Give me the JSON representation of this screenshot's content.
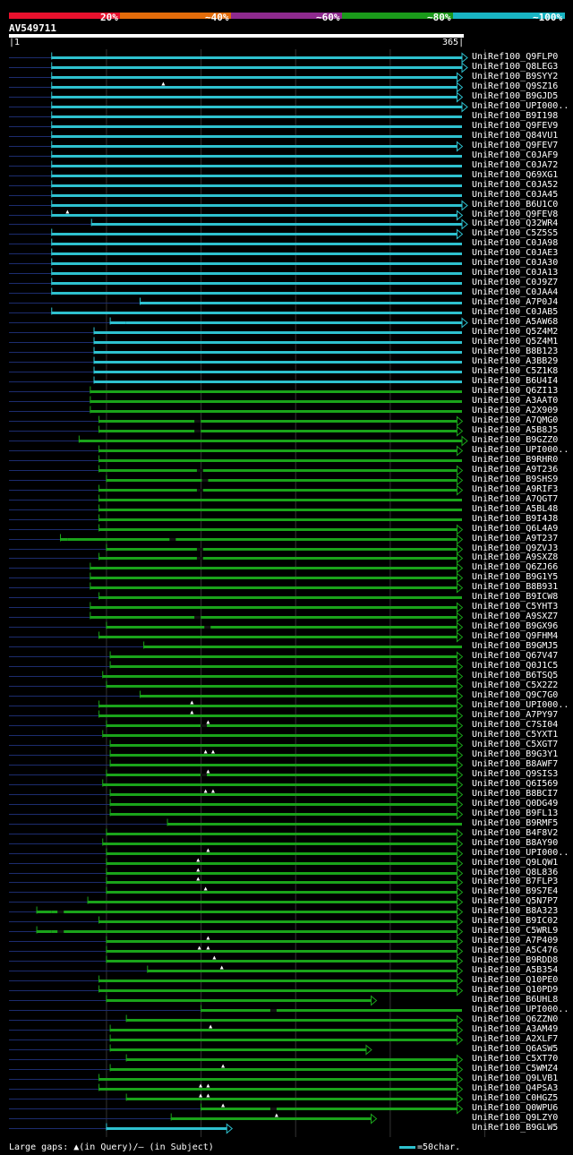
{
  "legend": {
    "colors": [
      "#e8112d",
      "#e36c0a",
      "#8e2a8e",
      "#1a9a1a",
      "#18b4c2"
    ],
    "labels": [
      "20%",
      "~40%",
      "~60%",
      "~80%",
      "~100%"
    ]
  },
  "query": {
    "id": "AV549711",
    "start": "1",
    "end": "365"
  },
  "hits": [
    {
      "label": "UniRef100_Q9FLP0",
      "start": 35,
      "end": 365,
      "c": "cyan",
      "arrow": true
    },
    {
      "label": "UniRef100_Q8LEG3",
      "start": 35,
      "end": 365,
      "c": "cyan",
      "arrow": true
    },
    {
      "label": "UniRef100_B9SYY2",
      "start": 35,
      "end": 361,
      "c": "cyan",
      "arrow": true
    },
    {
      "label": "UniRef100_Q9SZ16",
      "start": 35,
      "end": 361,
      "c": "cyan",
      "arrow": true,
      "gaps": [
        125
      ]
    },
    {
      "label": "UniRef100_B9GJD5",
      "start": 35,
      "end": 361,
      "c": "cyan",
      "arrow": true
    },
    {
      "label": "UniRef100_UPI000..",
      "start": 35,
      "end": 365,
      "c": "cyan",
      "arrow": true
    },
    {
      "label": "UniRef100_B9I198",
      "start": 35,
      "end": 365,
      "c": "cyan",
      "arrow": false
    },
    {
      "label": "UniRef100_Q9FEV9",
      "start": 35,
      "end": 365,
      "c": "cyan",
      "arrow": false
    },
    {
      "label": "UniRef100_Q84VU1",
      "start": 35,
      "end": 365,
      "c": "cyan",
      "arrow": false
    },
    {
      "label": "UniRef100_Q9FEV7",
      "start": 35,
      "end": 361,
      "c": "cyan",
      "arrow": true
    },
    {
      "label": "UniRef100_C0JAF9",
      "start": 35,
      "end": 365,
      "c": "cyan",
      "arrow": false
    },
    {
      "label": "UniRef100_C0JA72",
      "start": 35,
      "end": 365,
      "c": "cyan",
      "arrow": false
    },
    {
      "label": "UniRef100_Q69XG1",
      "start": 35,
      "end": 365,
      "c": "cyan",
      "arrow": false
    },
    {
      "label": "UniRef100_C0JA52",
      "start": 35,
      "end": 365,
      "c": "cyan",
      "arrow": false
    },
    {
      "label": "UniRef100_C0JA45",
      "start": 35,
      "end": 365,
      "c": "cyan",
      "arrow": false
    },
    {
      "label": "UniRef100_B6U1C0",
      "start": 35,
      "end": 365,
      "c": "cyan",
      "arrow": true
    },
    {
      "label": "UniRef100_Q9FEV8",
      "start": 35,
      "end": 361,
      "c": "cyan",
      "arrow": true,
      "gaps": [
        48
      ],
      "tail": 51
    },
    {
      "label": "UniRef100_Q32WR4",
      "start": 67,
      "end": 365,
      "c": "cyan",
      "arrow": true
    },
    {
      "label": "UniRef100_C5Z5S5",
      "start": 35,
      "end": 361,
      "c": "cyan",
      "arrow": true
    },
    {
      "label": "UniRef100_C0JA98",
      "start": 35,
      "end": 365,
      "c": "cyan",
      "arrow": false
    },
    {
      "label": "UniRef100_C0JAE3",
      "start": 35,
      "end": 365,
      "c": "cyan",
      "arrow": false
    },
    {
      "label": "UniRef100_C0JA30",
      "start": 35,
      "end": 365,
      "c": "cyan",
      "arrow": false
    },
    {
      "label": "UniRef100_C0JA13",
      "start": 35,
      "end": 365,
      "c": "cyan",
      "arrow": false
    },
    {
      "label": "UniRef100_C0J9Z7",
      "start": 35,
      "end": 365,
      "c": "cyan",
      "arrow": false
    },
    {
      "label": "UniRef100_C0JAA4",
      "start": 35,
      "end": 365,
      "c": "cyan",
      "arrow": false
    },
    {
      "label": "UniRef100_A7P0J4",
      "start": 106,
      "end": 365,
      "c": "cyan",
      "arrow": false
    },
    {
      "label": "UniRef100_C0JAB5",
      "start": 35,
      "end": 365,
      "c": "cyan",
      "arrow": false
    },
    {
      "label": "UniRef100_A5AW68",
      "start": 82,
      "end": 365,
      "c": "cyan",
      "arrow": true,
      "tail": 95
    },
    {
      "label": "UniRef100_Q5Z4M2",
      "start": 69,
      "end": 365,
      "c": "cyan",
      "arrow": false
    },
    {
      "label": "UniRef100_Q5Z4M1",
      "start": 69,
      "end": 365,
      "c": "cyan",
      "arrow": false
    },
    {
      "label": "UniRef100_B8B123",
      "start": 69,
      "end": 365,
      "c": "cyan",
      "arrow": false
    },
    {
      "label": "UniRef100_A3BB29",
      "start": 69,
      "end": 365,
      "c": "cyan",
      "arrow": false
    },
    {
      "label": "UniRef100_C5Z1K8",
      "start": 69,
      "end": 365,
      "c": "cyan",
      "arrow": false
    },
    {
      "label": "UniRef100_B6U4I4",
      "start": 69,
      "end": 365,
      "c": "cyan",
      "arrow": false
    },
    {
      "label": "UniRef100_Q6ZI13",
      "start": 66,
      "end": 365,
      "c": "green",
      "arrow": false
    },
    {
      "label": "UniRef100_A3AAT0",
      "start": 66,
      "end": 365,
      "c": "green",
      "arrow": false
    },
    {
      "label": "UniRef100_A2X909",
      "start": 66,
      "end": 365,
      "c": "green",
      "arrow": false
    },
    {
      "label": "UniRef100_A7QMG0",
      "start": 73,
      "end": 361,
      "c": "green",
      "arrow": true,
      "slashes": [
        150
      ]
    },
    {
      "label": "UniRef100_A5B8J5",
      "start": 73,
      "end": 361,
      "c": "green",
      "arrow": true,
      "slashes": [
        150
      ]
    },
    {
      "label": "UniRef100_B9GZZ0",
      "start": 57,
      "end": 365,
      "c": "green",
      "arrow": true
    },
    {
      "label": "UniRef100_UPI000..",
      "start": 73,
      "end": 361,
      "c": "green",
      "arrow": true
    },
    {
      "label": "UniRef100_B9RHR0",
      "start": 73,
      "end": 365,
      "c": "green",
      "arrow": false
    },
    {
      "label": "UniRef100_A9T236",
      "start": 73,
      "end": 361,
      "c": "green",
      "arrow": true,
      "slashes": [
        152
      ]
    },
    {
      "label": "UniRef100_B9SHS9",
      "start": 79,
      "end": 361,
      "c": "green",
      "arrow": true,
      "slashes": [
        156
      ]
    },
    {
      "label": "UniRef100_A9RIF3",
      "start": 73,
      "end": 361,
      "c": "green",
      "arrow": true,
      "slashes": [
        152
      ]
    },
    {
      "label": "UniRef100_A7QGT7",
      "start": 73,
      "end": 365,
      "c": "green",
      "arrow": false
    },
    {
      "label": "UniRef100_A5BL48",
      "start": 73,
      "end": 365,
      "c": "green",
      "arrow": false
    },
    {
      "label": "UniRef100_B9I4J8",
      "start": 73,
      "end": 365,
      "c": "green",
      "arrow": false
    },
    {
      "label": "UniRef100_Q6L4A9",
      "start": 73,
      "end": 361,
      "c": "green",
      "arrow": true
    },
    {
      "label": "UniRef100_A9T237",
      "start": 42,
      "end": 361,
      "c": "green",
      "arrow": true,
      "tail": 48,
      "slashes": [
        130
      ]
    },
    {
      "label": "UniRef100_Q9ZVJ3",
      "start": 79,
      "end": 361,
      "c": "green",
      "arrow": true,
      "slashes": [
        152
      ]
    },
    {
      "label": "UniRef100_A9SXZ8",
      "start": 73,
      "end": 361,
      "c": "green",
      "arrow": true,
      "slashes": [
        152
      ]
    },
    {
      "label": "UniRef100_Q6ZJ66",
      "start": 66,
      "end": 361,
      "c": "green",
      "arrow": true
    },
    {
      "label": "UniRef100_B9G1Y5",
      "start": 66,
      "end": 361,
      "c": "green",
      "arrow": true
    },
    {
      "label": "UniRef100_B8B931",
      "start": 66,
      "end": 361,
      "c": "green",
      "arrow": true
    },
    {
      "label": "UniRef100_B9ICW8",
      "start": 73,
      "end": 365,
      "c": "green",
      "arrow": false
    },
    {
      "label": "UniRef100_C5YHT3",
      "start": 66,
      "end": 361,
      "c": "green",
      "arrow": true
    },
    {
      "label": "UniRef100_A9SXZ7",
      "start": 66,
      "end": 361,
      "c": "green",
      "arrow": true,
      "slashes": [
        150
      ]
    },
    {
      "label": "UniRef100_B9GX96",
      "start": 79,
      "end": 361,
      "c": "green",
      "arrow": true,
      "slashes": [
        158
      ]
    },
    {
      "label": "UniRef100_Q9FHM4",
      "start": 73,
      "end": 361,
      "c": "green",
      "arrow": true
    },
    {
      "label": "UniRef100_B9GMJ5",
      "start": 109,
      "end": 365,
      "c": "green",
      "arrow": false
    },
    {
      "label": "UniRef100_Q67V47",
      "start": 82,
      "end": 361,
      "c": "green",
      "arrow": true
    },
    {
      "label": "UniRef100_Q0J1C5",
      "start": 82,
      "end": 361,
      "c": "green",
      "arrow": true
    },
    {
      "label": "UniRef100_B6TSQ5",
      "start": 76,
      "end": 361,
      "c": "green",
      "arrow": true
    },
    {
      "label": "UniRef100_C5X2Z2",
      "start": 79,
      "end": 361,
      "c": "green",
      "arrow": true
    },
    {
      "label": "UniRef100_Q9C7G0",
      "start": 106,
      "end": 361,
      "c": "green",
      "arrow": true
    },
    {
      "label": "UniRef100_UPI000..",
      "start": 73,
      "end": 361,
      "c": "green",
      "arrow": true,
      "gaps": [
        148
      ]
    },
    {
      "label": "UniRef100_A7PY97",
      "start": 73,
      "end": 361,
      "c": "green",
      "arrow": true,
      "gaps": [
        148
      ]
    },
    {
      "label": "UniRef100_C7SI04",
      "start": 79,
      "end": 361,
      "c": "green",
      "arrow": true,
      "gaps": [
        161
      ],
      "slashes": [
        155
      ]
    },
    {
      "label": "UniRef100_C5YXT1",
      "start": 76,
      "end": 361,
      "c": "green",
      "arrow": true
    },
    {
      "label": "UniRef100_C5XGT7",
      "start": 82,
      "end": 361,
      "c": "green",
      "arrow": true
    },
    {
      "label": "UniRef100_B9G3Y1",
      "start": 82,
      "end": 361,
      "c": "green",
      "arrow": true,
      "gaps": [
        159,
        165
      ]
    },
    {
      "label": "UniRef100_B8AWF7",
      "start": 82,
      "end": 361,
      "c": "green",
      "arrow": true
    },
    {
      "label": "UniRef100_Q9SIS3",
      "start": 79,
      "end": 361,
      "c": "green",
      "arrow": true,
      "gaps": [
        161
      ],
      "slashes": [
        155
      ]
    },
    {
      "label": "UniRef100_Q6I569",
      "start": 76,
      "end": 361,
      "c": "green",
      "arrow": true
    },
    {
      "label": "UniRef100_B8BCI7",
      "start": 82,
      "end": 361,
      "c": "green",
      "arrow": true,
      "gaps": [
        159,
        165
      ]
    },
    {
      "label": "UniRef100_Q0DG49",
      "start": 82,
      "end": 361,
      "c": "green",
      "arrow": true
    },
    {
      "label": "UniRef100_B9FL13",
      "start": 82,
      "end": 361,
      "c": "green",
      "arrow": true
    },
    {
      "label": "UniRef100_B9RMF5",
      "start": 128,
      "end": 365,
      "c": "green",
      "arrow": false
    },
    {
      "label": "UniRef100_B4F8V2",
      "start": 79,
      "end": 361,
      "c": "green",
      "arrow": true
    },
    {
      "label": "UniRef100_B8AY90",
      "start": 76,
      "end": 361,
      "c": "green",
      "arrow": true
    },
    {
      "label": "UniRef100_UPI000..",
      "start": 79,
      "end": 361,
      "c": "green",
      "arrow": true,
      "gaps": [
        161
      ]
    },
    {
      "label": "UniRef100_Q9LQW1",
      "start": 79,
      "end": 361,
      "c": "green",
      "arrow": true,
      "gaps": [
        153
      ]
    },
    {
      "label": "UniRef100_Q8L836",
      "start": 79,
      "end": 361,
      "c": "green",
      "arrow": true,
      "gaps": [
        153
      ]
    },
    {
      "label": "UniRef100_B7FLP3",
      "start": 79,
      "end": 361,
      "c": "green",
      "arrow": true,
      "gaps": [
        153
      ]
    },
    {
      "label": "UniRef100_B9S7E4",
      "start": 79,
      "end": 361,
      "c": "green",
      "arrow": true,
      "gaps": [
        159
      ]
    },
    {
      "label": "UniRef100_Q5N7P7",
      "start": 64,
      "end": 361,
      "c": "green",
      "arrow": true
    },
    {
      "label": "UniRef100_B8A323",
      "start": 23,
      "end": 361,
      "c": "green",
      "arrow": true,
      "tail": 35,
      "slashes": [
        40
      ]
    },
    {
      "label": "UniRef100_B9IC02",
      "start": 73,
      "end": 361,
      "c": "green",
      "arrow": true
    },
    {
      "label": "UniRef100_C5WRL9",
      "start": 23,
      "end": 361,
      "c": "green",
      "arrow": true,
      "tail": 35,
      "slashes": [
        40
      ]
    },
    {
      "label": "UniRef100_A7P409",
      "start": 79,
      "end": 361,
      "c": "green",
      "arrow": true,
      "gaps": [
        161
      ]
    },
    {
      "label": "UniRef100_A5C476",
      "start": 79,
      "end": 361,
      "c": "green",
      "arrow": true,
      "gaps": [
        154,
        161
      ]
    },
    {
      "label": "UniRef100_B9RDD8",
      "start": 79,
      "end": 361,
      "c": "green",
      "arrow": true,
      "gaps": [
        166
      ]
    },
    {
      "label": "UniRef100_A5B354",
      "start": 112,
      "end": 361,
      "c": "green",
      "arrow": true,
      "gaps": [
        172
      ]
    },
    {
      "label": "UniRef100_Q10PE0",
      "start": 73,
      "end": 361,
      "c": "green",
      "arrow": true
    },
    {
      "label": "UniRef100_Q10PD9",
      "start": 73,
      "end": 361,
      "c": "green",
      "arrow": true
    },
    {
      "label": "UniRef100_B6UHL8",
      "start": 79,
      "end": 292,
      "c": "green",
      "arrow": true
    },
    {
      "label": "UniRef100_UPI000..",
      "start": 155,
      "end": 365,
      "c": "green",
      "arrow": false,
      "slashes": [
        211
      ]
    },
    {
      "label": "UniRef100_Q6ZZN0",
      "start": 95,
      "end": 361,
      "c": "green",
      "arrow": true
    },
    {
      "label": "UniRef100_A3AM49",
      "start": 82,
      "end": 361,
      "c": "green",
      "arrow": true,
      "gaps": [
        163
      ]
    },
    {
      "label": "UniRef100_A2XLF7",
      "start": 82,
      "end": 361,
      "c": "green",
      "arrow": true
    },
    {
      "label": "UniRef100_Q6ASW5",
      "start": 82,
      "end": 288,
      "c": "green",
      "arrow": true
    },
    {
      "label": "UniRef100_C5XT70",
      "start": 95,
      "end": 361,
      "c": "green",
      "arrow": true
    },
    {
      "label": "UniRef100_C5WMZ4",
      "start": 82,
      "end": 361,
      "c": "green",
      "arrow": true,
      "gaps": [
        173
      ]
    },
    {
      "label": "UniRef100_Q9LVB1",
      "start": 73,
      "end": 361,
      "c": "green",
      "arrow": true
    },
    {
      "label": "UniRef100_Q4PSA3",
      "start": 73,
      "end": 361,
      "c": "green",
      "arrow": true,
      "gaps": [
        155,
        161
      ]
    },
    {
      "label": "UniRef100_C0HGZ5",
      "start": 95,
      "end": 361,
      "c": "green",
      "arrow": true,
      "gaps": [
        155,
        161
      ]
    },
    {
      "label": "UniRef100_Q0WPU6",
      "start": 155,
      "end": 361,
      "c": "green",
      "arrow": true,
      "gaps": [
        173
      ],
      "slashes": [
        211
      ]
    },
    {
      "label": "UniRef100_Q9LZY0",
      "start": 131,
      "end": 292,
      "c": "green",
      "arrow": true,
      "gaps": [
        216
      ]
    },
    {
      "label": "UniRef100_B9GLW5",
      "start": 79,
      "end": 176,
      "c": "cyan",
      "arrow": true
    }
  ],
  "footer": {
    "gaps_text": "Large gaps: ▲(in Query)/— (in Subject)",
    "scale_text": "=50char."
  }
}
